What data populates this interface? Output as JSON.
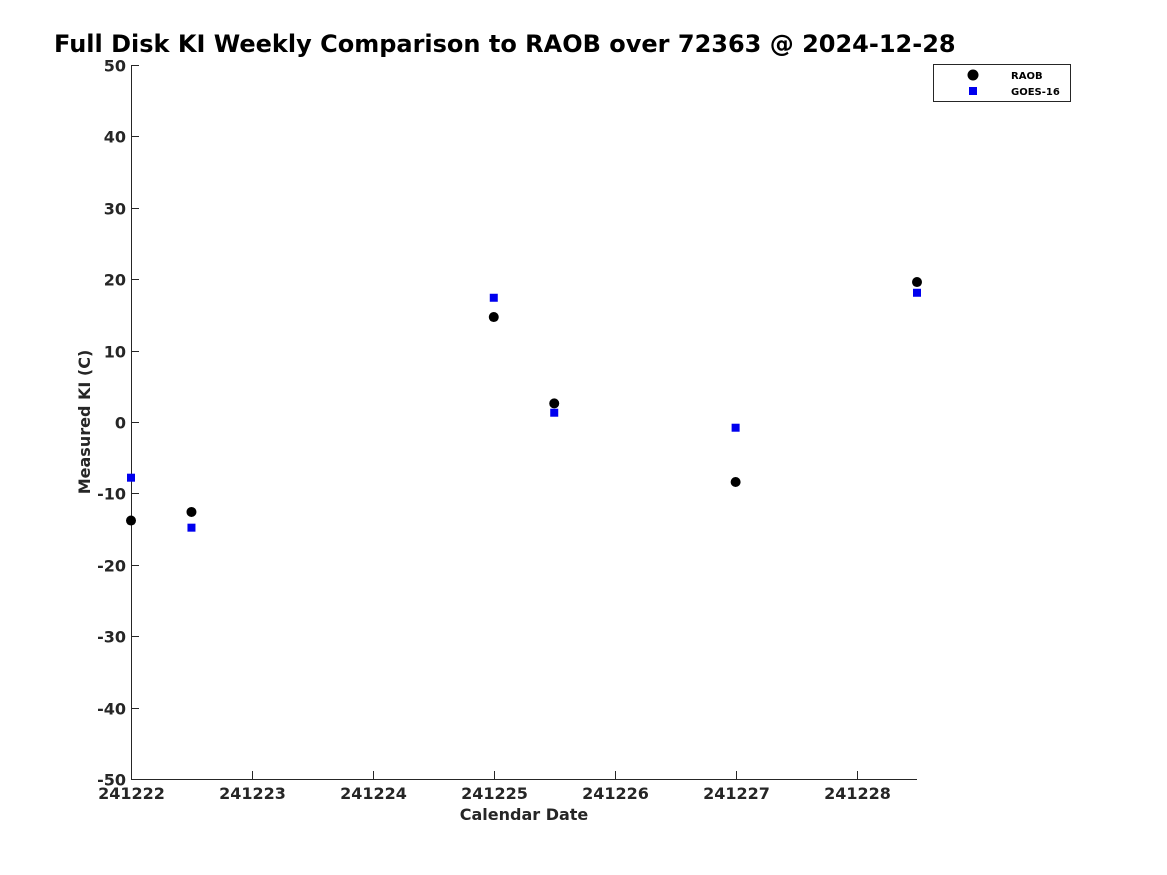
{
  "chart_data": {
    "type": "scatter",
    "title": "Full Disk KI Weekly Comparison to RAOB over 72363 @ 2024-12-28",
    "xlabel": "Calendar Date",
    "ylabel": "Measured KI (C)",
    "xlim": [
      241222,
      241228.5
    ],
    "ylim": [
      -50,
      50
    ],
    "x_ticks": [
      241222,
      241223,
      241224,
      241225,
      241226,
      241227,
      241228
    ],
    "x_tick_labels": [
      "241222",
      "241223",
      "241224",
      "241225",
      "241226",
      "241227",
      "241228"
    ],
    "y_ticks": [
      -50,
      -40,
      -30,
      -20,
      -10,
      0,
      10,
      20,
      30,
      40,
      50
    ],
    "y_tick_labels": [
      "-50",
      "-40",
      "-30",
      "-20",
      "-10",
      "0",
      "10",
      "20",
      "30",
      "40",
      "50"
    ],
    "grid": false,
    "legend_position": "top-right",
    "series": [
      {
        "name": "RAOB",
        "marker": "circle",
        "color": "#000000",
        "points": [
          {
            "x": 241222.0,
            "y": -13.8
          },
          {
            "x": 241222.5,
            "y": -12.6
          },
          {
            "x": 241225.0,
            "y": 14.7
          },
          {
            "x": 241225.5,
            "y": 2.6
          },
          {
            "x": 241227.0,
            "y": -8.4
          },
          {
            "x": 241228.5,
            "y": 19.6
          }
        ]
      },
      {
        "name": "GOES-16",
        "marker": "square",
        "color": "#0000ee",
        "points": [
          {
            "x": 241222.0,
            "y": -7.8
          },
          {
            "x": 241222.5,
            "y": -14.8
          },
          {
            "x": 241225.0,
            "y": 17.4
          },
          {
            "x": 241225.5,
            "y": 1.3
          },
          {
            "x": 241227.0,
            "y": -0.8
          },
          {
            "x": 241228.5,
            "y": 18.1
          }
        ]
      }
    ]
  }
}
